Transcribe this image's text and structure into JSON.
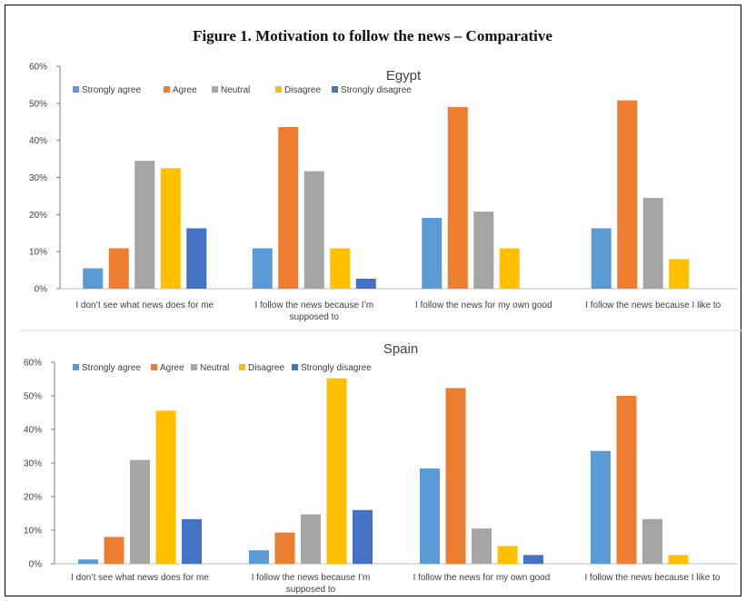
{
  "title": "Figure 1. Motivation to follow the news – Comparative",
  "colors": {
    "Strongly agree": "#5B9BD5",
    "Agree": "#ED7D31",
    "Neutral": "#A5A5A5",
    "Disagree": "#FFC000",
    "Strongly disagree": "#4472C4"
  },
  "chart_data": [
    {
      "type": "bar",
      "title": "Egypt",
      "legend": "top-left",
      "ylim": [
        0,
        60
      ],
      "yticks": [
        "0%",
        "10%",
        "20%",
        "30%",
        "40%",
        "50%",
        "60%"
      ],
      "categories": [
        [
          "I don’t see what news does for me"
        ],
        [
          "I follow the news because I’m",
          "supposed to"
        ],
        [
          "I follow the news for my own good"
        ],
        [
          "I follow the news because I like to"
        ]
      ],
      "series": [
        {
          "name": "Strongly agree",
          "values": [
            5.5,
            10.9,
            19.1,
            16.3
          ]
        },
        {
          "name": "Agree",
          "values": [
            10.9,
            43.6,
            49.0,
            50.8
          ]
        },
        {
          "name": "Neutral",
          "values": [
            34.5,
            31.7,
            20.8,
            24.5
          ]
        },
        {
          "name": "Disagree",
          "values": [
            32.5,
            10.9,
            10.9,
            8.0
          ]
        },
        {
          "name": "Strongly disagree",
          "values": [
            16.3,
            2.7,
            0,
            0
          ]
        }
      ]
    },
    {
      "type": "bar",
      "title": "Spain",
      "legend": "top-left",
      "ylim": [
        0,
        60
      ],
      "yticks": [
        "0%",
        "10%",
        "20%",
        "30%",
        "40%",
        "50%",
        "60%"
      ],
      "categories": [
        [
          "I don’t see what news does for me"
        ],
        [
          "I follow the news because I’m",
          "supposed to"
        ],
        [
          "I follow the news for my own good"
        ],
        [
          "I follow the news because I like to"
        ]
      ],
      "series": [
        {
          "name": "Strongly agree",
          "values": [
            1.3,
            4.0,
            28.4,
            33.6
          ]
        },
        {
          "name": "Agree",
          "values": [
            8.0,
            9.3,
            52.3,
            50.0
          ]
        },
        {
          "name": "Neutral",
          "values": [
            30.9,
            14.7,
            10.5,
            13.3
          ]
        },
        {
          "name": "Disagree",
          "values": [
            45.6,
            55.2,
            5.3,
            2.6
          ]
        },
        {
          "name": "Strongly disagree",
          "values": [
            13.3,
            16.0,
            2.6,
            0
          ]
        }
      ]
    }
  ]
}
